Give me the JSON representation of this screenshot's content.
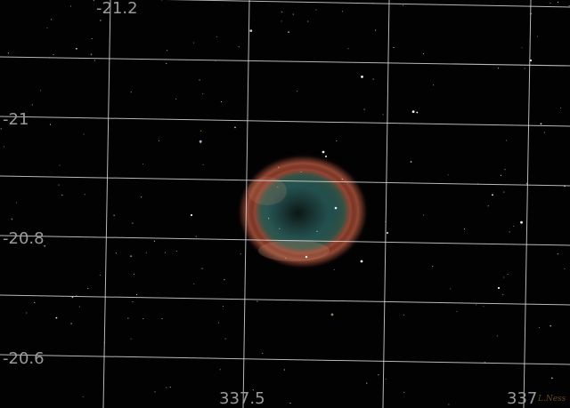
{
  "image": {
    "subject": "Helix Nebula",
    "colors": {
      "background": "#020203",
      "grid": "#d8d8d8",
      "label": "#9a9a9a",
      "nebula_outer": "#c0502a",
      "nebula_inner": "#2f6f6a"
    }
  },
  "grid": {
    "dec_labels": [
      "-21.2",
      "-21",
      "-20.8",
      "-20.6"
    ],
    "ra_labels": [
      "337.5",
      "337"
    ]
  },
  "watermark": "L.Ness"
}
